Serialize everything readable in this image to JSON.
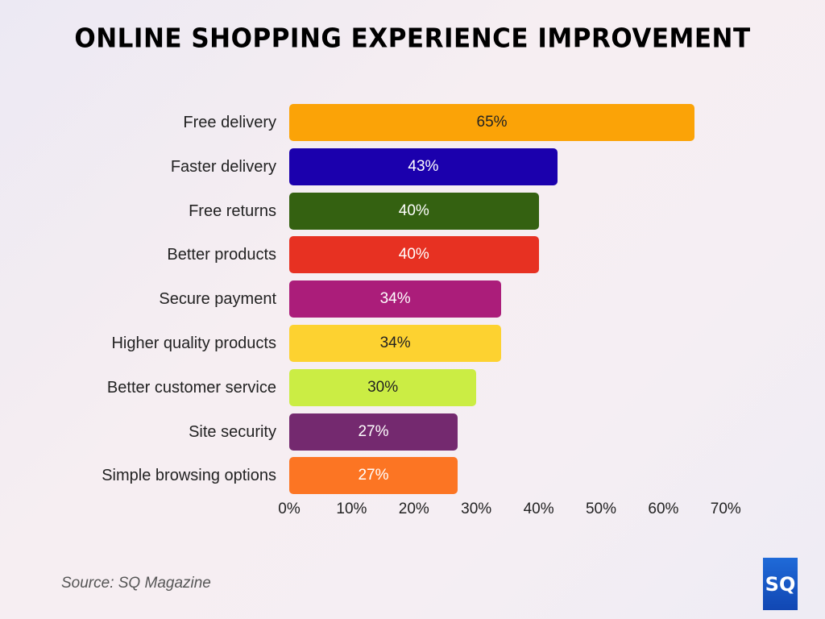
{
  "header": {
    "title": "ONLINE SHOPPING EXPERIENCE IMPROVEMENT"
  },
  "footer": {
    "source": "Source: SQ Magazine",
    "logo_text": "SQ"
  },
  "chart_data": {
    "type": "bar",
    "orientation": "horizontal",
    "title": "ONLINE SHOPPING EXPERIENCE IMPROVEMENT",
    "xlabel": "",
    "ylabel": "",
    "xlim": [
      0,
      70
    ],
    "grid": false,
    "legend": null,
    "categories": [
      "Free delivery",
      "Faster delivery",
      "Free returns",
      "Better products",
      "Secure payment",
      "Higher quality products",
      "Better customer service",
      "Site security",
      "Simple browsing options"
    ],
    "values": [
      65,
      43,
      40,
      40,
      34,
      34,
      30,
      27,
      27
    ],
    "value_labels": [
      "65%",
      "43%",
      "40%",
      "40%",
      "34%",
      "34%",
      "30%",
      "27%",
      "27%"
    ],
    "colors": [
      "#fba307",
      "#1b00ad",
      "#346111",
      "#e73122",
      "#ab1d7a",
      "#fdd230",
      "#cbed44",
      "#74296f",
      "#fc7523"
    ],
    "label_colors": [
      "#222222",
      "#ffffff",
      "#ffffff",
      "#ffffff",
      "#ffffff",
      "#222222",
      "#222222",
      "#ffffff",
      "#ffffff"
    ],
    "x_ticks": [
      "0%",
      "10%",
      "20%",
      "30%",
      "40%",
      "50%",
      "60%",
      "70%"
    ],
    "source": "Source: SQ Magazine"
  }
}
